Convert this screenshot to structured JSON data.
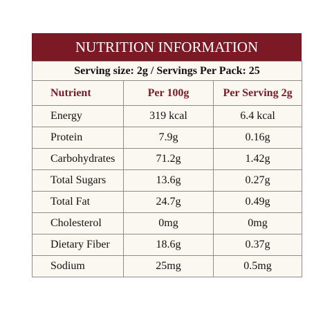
{
  "header": {
    "title": "NUTRITION INFORMATION",
    "serving": "Serving size: 2g / Servings Per Pack: 25"
  },
  "table": {
    "columns": [
      "Nutrient",
      "Per 100g",
      "Per Serving 2g"
    ],
    "rows": [
      [
        "Energy",
        "319 kcal",
        "6.4 kcal"
      ],
      [
        "Protein",
        "7.9g",
        "0.16g"
      ],
      [
        "Carbohydrates",
        "71.2g",
        "1.42g"
      ],
      [
        "Total Sugars",
        "13.6g",
        "0.27g"
      ],
      [
        "Total Fat",
        "24.7g",
        "0.49g"
      ],
      [
        "Cholesterol",
        "0mg",
        "0mg"
      ],
      [
        "Dietary Fiber",
        "18.6g",
        "0.37g"
      ],
      [
        "Sodium",
        "25mg",
        "0.5mg"
      ]
    ]
  }
}
